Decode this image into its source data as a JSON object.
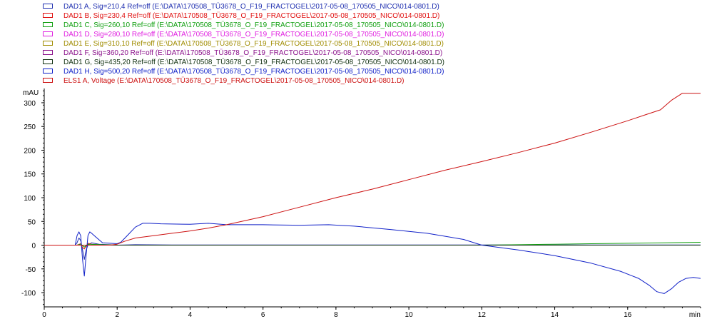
{
  "chart_data": {
    "type": "line",
    "ylabel": "mAU",
    "xlabel": "min",
    "xlim": [
      0,
      18
    ],
    "ylim": [
      -130,
      330
    ],
    "xticks": [
      0,
      2,
      4,
      6,
      8,
      10,
      12,
      14,
      16
    ],
    "xtick_labels": [
      "0",
      "2",
      "4",
      "6",
      "8",
      "10",
      "12",
      "14",
      "16"
    ],
    "yticks": [
      -100,
      -50,
      0,
      50,
      100,
      150,
      200,
      250,
      300
    ],
    "ytick_labels": [
      "-100",
      "-50",
      "0",
      "50",
      "100",
      "150",
      "200",
      "250",
      "300"
    ],
    "grid": false,
    "legend_position": "top-left",
    "series": [
      {
        "name": "DAD1 A, Sig=210,4 Ref=off (E:\\DATA\\170508_TÜ3678_O_F19_FRACTOGEL\\2017-05-08_170505_NICO\\014-0801.D)",
        "color": "#1f2fb0",
        "x": [
          0,
          0.85,
          0.9,
          0.95,
          1.0,
          1.05,
          1.1,
          1.15,
          1.2,
          1.3,
          1.5,
          1.8,
          2.0,
          2.5,
          3.5,
          5,
          8,
          18
        ],
        "y": [
          0,
          0,
          5,
          15,
          10,
          -10,
          -30,
          -10,
          0,
          5,
          2,
          1,
          0,
          1,
          0.5,
          0.5,
          0.5,
          0.5
        ]
      },
      {
        "name": "DAD1 B, Sig=230,4 Ref=off (E:\\DATA\\170508_TÜ3678_O_F19_FRACTOGEL\\2017-05-08_170505_NICO\\014-0801.D)",
        "color": "#e01010",
        "x": [
          0,
          0.9,
          1.0,
          1.05,
          1.1,
          1.2,
          1.3,
          1.5,
          2.0,
          18
        ],
        "y": [
          0,
          0,
          3,
          -5,
          -8,
          4,
          2,
          1,
          0,
          0
        ]
      },
      {
        "name": "DAD1 C, Sig=260,10 Ref=off (E:\\DATA\\170508_TÜ3678_O_F19_FRACTOGEL\\2017-05-08_170505_NICO\\014-0801.D)",
        "color": "#12a012",
        "x": [
          0,
          0.9,
          1.0,
          1.1,
          1.2,
          2.0,
          12,
          13,
          14,
          15,
          16,
          17,
          18
        ],
        "y": [
          0,
          0,
          2,
          -4,
          2,
          0,
          0,
          1,
          2,
          3,
          4,
          5,
          6
        ]
      },
      {
        "name": "DAD1 D, Sig=280,10 Ref=off (E:\\DATA\\170508_TÜ3678_O_F19_FRACTOGEL\\2017-05-08_170505_NICO\\014-0801.D)",
        "color": "#e020e0",
        "x": [
          0,
          18
        ],
        "y": [
          0,
          0
        ]
      },
      {
        "name": "DAD1 E, Sig=310,10 Ref=off (E:\\DATA\\170508_TÜ3678_O_F19_FRACTOGEL\\2017-05-08_170505_NICO\\014-0801.D)",
        "color": "#a08c00",
        "x": [
          0,
          18
        ],
        "y": [
          0,
          0
        ]
      },
      {
        "name": "DAD1 F, Sig=360,20 Ref=off (E:\\DATA\\170508_TÜ3678_O_F19_FRACTOGEL\\2017-05-08_170505_NICO\\014-0801.D)",
        "color": "#8a108a",
        "x": [
          0,
          18
        ],
        "y": [
          0,
          0
        ]
      },
      {
        "name": "DAD1 G, Sig=435,20 Ref=off (E:\\DATA\\170508_TÜ3678_O_F19_FRACTOGEL\\2017-05-08_170505_NICO\\014-0801.D)",
        "color": "#103010",
        "x": [
          0,
          18
        ],
        "y": [
          0,
          0
        ]
      },
      {
        "name": "DAD1 H, Sig=500,20 Ref=off (E:\\DATA\\170508_TÜ3678_O_F19_FRACTOGEL\\2017-05-08_170505_NICO\\014-0801.D)",
        "color": "#1020c8",
        "x": [
          0,
          0.85,
          0.9,
          0.95,
          1.0,
          1.05,
          1.1,
          1.15,
          1.2,
          1.25,
          1.3,
          1.4,
          1.6,
          1.8,
          2.0,
          2.1,
          2.3,
          2.5,
          2.7,
          2.9,
          3.2,
          4.0,
          4.5,
          5.0,
          6.0,
          7.0,
          7.8,
          8.5,
          9.5,
          10.5,
          11.5,
          12.0,
          13.0,
          14.0,
          15.0,
          15.8,
          16.3,
          16.6,
          16.8,
          17.0,
          17.2,
          17.4,
          17.6,
          17.8,
          18.0
        ],
        "y": [
          0,
          0,
          20,
          28,
          20,
          -30,
          -65,
          -20,
          20,
          28,
          25,
          18,
          5,
          4,
          3,
          6,
          22,
          38,
          46,
          46,
          45,
          44,
          46,
          43,
          43,
          42,
          43,
          40,
          33,
          25,
          12,
          0,
          -10,
          -22,
          -38,
          -55,
          -70,
          -85,
          -98,
          -102,
          -92,
          -78,
          -70,
          -68,
          -70
        ]
      },
      {
        "name": "ELS1 A, Voltage (E:\\DATA\\170508_TÜ3678_O_F19_FRACTOGEL\\2017-05-08_170505_NICO\\014-0801.D)",
        "color": "#cc1010",
        "x": [
          0,
          1.8,
          2.0,
          2.2,
          2.5,
          3.0,
          3.5,
          4.0,
          4.5,
          5.0,
          6.0,
          7.0,
          8.0,
          9.0,
          10.0,
          11.0,
          12.0,
          13.0,
          14.0,
          15.0,
          16.0,
          16.5,
          16.9,
          17.2,
          17.5,
          18.0
        ],
        "y": [
          0,
          0,
          2,
          8,
          15,
          20,
          25,
          30,
          36,
          43,
          60,
          80,
          100,
          118,
          138,
          158,
          176,
          195,
          215,
          238,
          262,
          275,
          285,
          305,
          320,
          320
        ]
      }
    ]
  }
}
